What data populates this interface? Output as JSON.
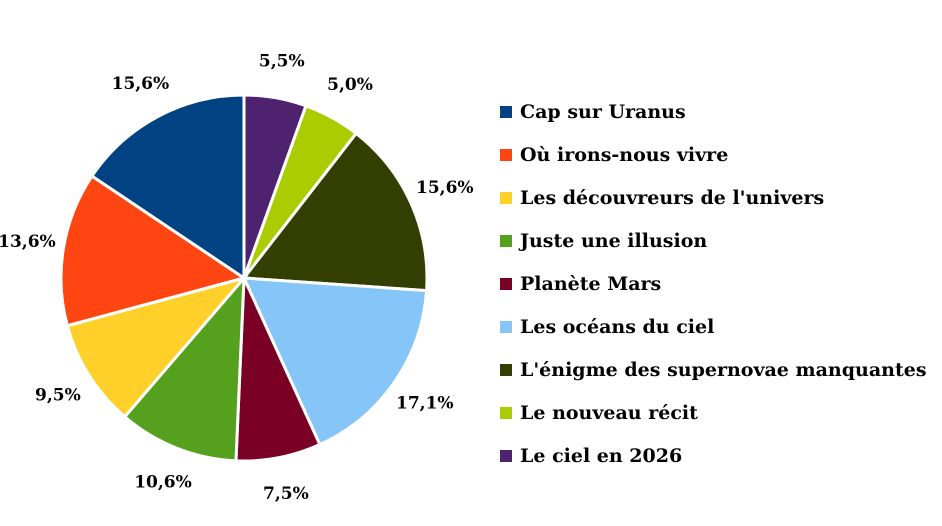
{
  "chart_data": {
    "type": "pie",
    "title": "",
    "legend_position": "right",
    "start_angle_deg": 0,
    "direction": "clockwise",
    "categories": [
      "Le ciel en 2026",
      "Le nouveau récit",
      "L'énigme des supernovae manquantes",
      "Les océans du ciel",
      "Planète Mars",
      "Juste une illusion",
      "Les découvreurs de l'univers",
      "Où irons-nous vivre",
      "Cap sur Uranus"
    ],
    "values": [
      5.5,
      5.0,
      15.6,
      17.1,
      7.5,
      10.6,
      9.5,
      13.6,
      15.6
    ],
    "value_labels": [
      "5,5%",
      "5,0%",
      "15,6%",
      "17,1%",
      "7,5%",
      "10,6%",
      "9,5%",
      "13,6%",
      "15,6%"
    ],
    "colors": [
      "#4f2270",
      "#aacc00",
      "#333f00",
      "#85c5f7",
      "#7a0026",
      "#55a11e",
      "#ffd02a",
      "#ff4511",
      "#004282"
    ]
  },
  "legend": {
    "items": [
      {
        "label": "Cap sur Uranus",
        "color": "#004282"
      },
      {
        "label": "Où irons-nous vivre",
        "color": "#ff4511"
      },
      {
        "label": "Les découvreurs de l'univers",
        "color": "#ffd02a"
      },
      {
        "label": "Juste une illusion",
        "color": "#55a11e"
      },
      {
        "label": "Planète Mars",
        "color": "#7a0026"
      },
      {
        "label": "Les océans du ciel",
        "color": "#85c5f7"
      },
      {
        "label": "L'énigme des supernovae manquantes",
        "color": "#333f00"
      },
      {
        "label": "Le nouveau récit",
        "color": "#aacc00"
      },
      {
        "label": "Le ciel en 2026",
        "color": "#4f2270"
      }
    ]
  }
}
